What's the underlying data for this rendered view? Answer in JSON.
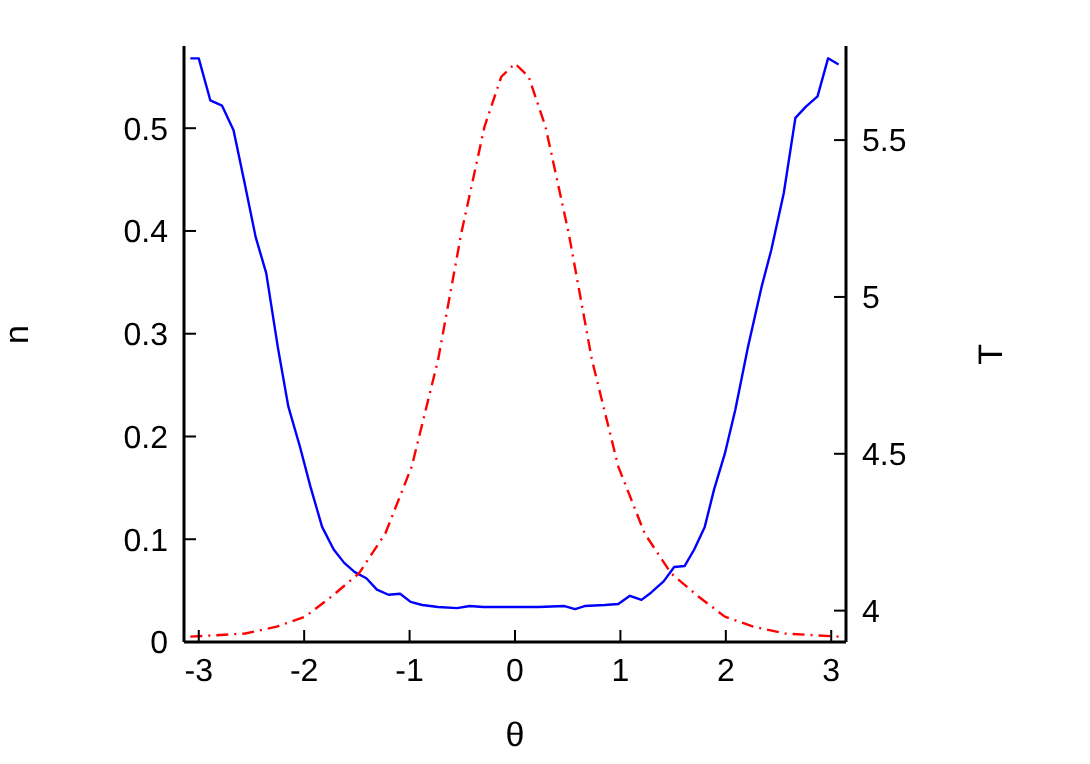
{
  "chart_data": {
    "type": "line",
    "xlabel": "θ",
    "ylabel": "n",
    "y2label": "T",
    "xlim": [
      -3.14,
      3.14
    ],
    "xticks": [
      -3,
      -2,
      -1,
      0,
      1,
      2,
      3
    ],
    "ylim": [
      0,
      0.58
    ],
    "yticks": [
      0,
      0.1,
      0.2,
      0.3,
      0.4,
      0.5
    ],
    "y2lim": [
      3.9,
      5.8
    ],
    "y2ticks": [
      4,
      4.5,
      5,
      5.5
    ],
    "grid": false,
    "legend": false,
    "series": [
      {
        "color": "#0000ff",
        "line_style": "solid",
        "x": [
          -3.08,
          -3.0,
          -2.89,
          -2.78,
          -2.67,
          -2.57,
          -2.46,
          -2.36,
          -2.25,
          -2.15,
          -2.04,
          -1.94,
          -1.83,
          -1.72,
          -1.62,
          -1.52,
          -1.41,
          -1.31,
          -1.2,
          -1.09,
          -0.99,
          -0.88,
          -0.73,
          -0.55,
          -0.43,
          -0.3,
          -0.05,
          0.22,
          0.47,
          0.57,
          0.66,
          0.85,
          0.98,
          1.09,
          1.2,
          1.29,
          1.41,
          1.51,
          1.61,
          1.7,
          1.8,
          1.89,
          1.99,
          2.09,
          2.21,
          2.34,
          2.43,
          2.55,
          2.66,
          2.76,
          2.87,
          2.97,
          3.07
        ],
        "values": [
          0.568,
          0.568,
          0.527,
          0.522,
          0.498,
          0.449,
          0.394,
          0.359,
          0.287,
          0.229,
          0.19,
          0.151,
          0.112,
          0.09,
          0.077,
          0.068,
          0.062,
          0.051,
          0.046,
          0.047,
          0.039,
          0.036,
          0.034,
          0.033,
          0.035,
          0.034,
          0.034,
          0.034,
          0.035,
          0.032,
          0.035,
          0.036,
          0.037,
          0.045,
          0.041,
          0.048,
          0.059,
          0.073,
          0.074,
          0.09,
          0.112,
          0.149,
          0.183,
          0.226,
          0.287,
          0.346,
          0.381,
          0.437,
          0.51,
          0.521,
          0.531,
          0.568,
          0.562
        ]
      },
      {
        "color": "#ff0000",
        "line_style": "dashed",
        "axis": "y2",
        "x": [
          -3.08,
          -2.56,
          -2.26,
          -1.99,
          -1.74,
          -1.48,
          -1.23,
          -0.98,
          -0.73,
          -0.51,
          -0.29,
          -0.13,
          0,
          0.13,
          0.29,
          0.51,
          0.73,
          0.98,
          1.23,
          1.48,
          1.74,
          1.99,
          2.26,
          2.56,
          3.08
        ],
        "values": [
          3.917,
          3.927,
          3.949,
          3.981,
          4.045,
          4.119,
          4.246,
          4.459,
          4.799,
          5.202,
          5.542,
          5.702,
          5.744,
          5.702,
          5.542,
          5.202,
          4.799,
          4.459,
          4.246,
          4.119,
          4.045,
          3.981,
          3.949,
          3.927,
          3.917
        ]
      }
    ]
  }
}
